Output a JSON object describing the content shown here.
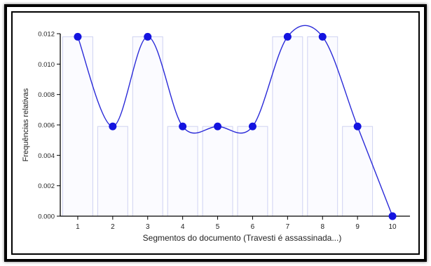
{
  "chart_data": {
    "type": "line",
    "title": "",
    "xlabel": "Segmentos do documento (Travesti é assassinada...)",
    "ylabel": "Frequências relativas",
    "x": [
      1,
      2,
      3,
      4,
      5,
      6,
      7,
      8,
      9,
      10
    ],
    "xlim": [
      0.5,
      10.5
    ],
    "ylim": [
      0,
      0.012
    ],
    "yticks": [
      "0.000",
      "0.002",
      "0.004",
      "0.006",
      "0.008",
      "0.010",
      "0.012"
    ],
    "xticks": [
      "1",
      "2",
      "3",
      "4",
      "5",
      "6",
      "7",
      "8",
      "9",
      "10"
    ],
    "values": [
      0.0118,
      0.0059,
      0.0118,
      0.0059,
      0.0059,
      0.0059,
      0.0118,
      0.0118,
      0.0059,
      0.0
    ],
    "bars": true,
    "smoothed": true,
    "grid": false,
    "colors": {
      "line": "#2a2ad8",
      "marker": "#1414e0",
      "bar_fill": "#fbfbff",
      "bar_stroke": "#cfd2f2",
      "axis": "#000000"
    }
  }
}
